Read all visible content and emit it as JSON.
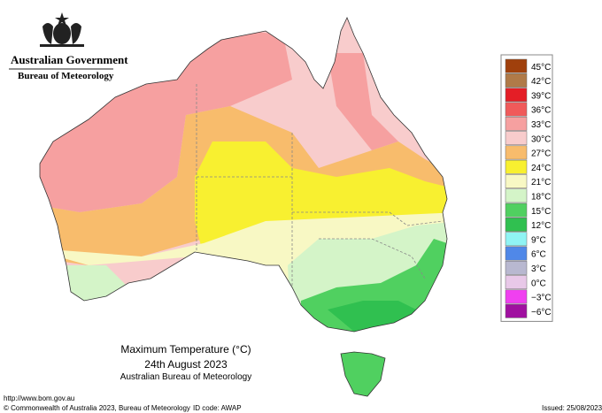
{
  "header": {
    "title": "Australian Government",
    "subtitle": "Bureau of Meteorology"
  },
  "map": {
    "title": "Maximum Temperature (°C)",
    "date": "24th August 2023",
    "source": "Australian Bureau of Meteorology"
  },
  "legend": {
    "items": [
      {
        "label": "45°C",
        "color": "#a0400c"
      },
      {
        "label": "42°C",
        "color": "#b07a48"
      },
      {
        "label": "39°C",
        "color": "#e41e26"
      },
      {
        "label": "36°C",
        "color": "#f05a5a"
      },
      {
        "label": "33°C",
        "color": "#f6a0a0"
      },
      {
        "label": "30°C",
        "color": "#f8cccc"
      },
      {
        "label": "27°C",
        "color": "#f8bc6c"
      },
      {
        "label": "24°C",
        "color": "#f8f030"
      },
      {
        "label": "21°C",
        "color": "#f8f8c4"
      },
      {
        "label": "18°C",
        "color": "#d4f4c8"
      },
      {
        "label": "15°C",
        "color": "#50d060"
      },
      {
        "label": "12°C",
        "color": "#30c050"
      },
      {
        "label": "9°C",
        "color": "#90f4f4"
      },
      {
        "label": "6°C",
        "color": "#5088e8"
      },
      {
        "label": "3°C",
        "color": "#b8b8d0"
      },
      {
        "label": "0°C",
        "color": "#e8c8e8"
      },
      {
        "label": "−3°C",
        "color": "#f040f0"
      },
      {
        "label": "−6°C",
        "color": "#a010a0"
      }
    ]
  },
  "footer": {
    "url": "http://www.bom.gov.au",
    "copyright": "© Commonwealth of Australia 2023, Bureau of Meteorology",
    "id_code": "ID code: AWAP",
    "issued": "Issued: 25/08/2023"
  }
}
